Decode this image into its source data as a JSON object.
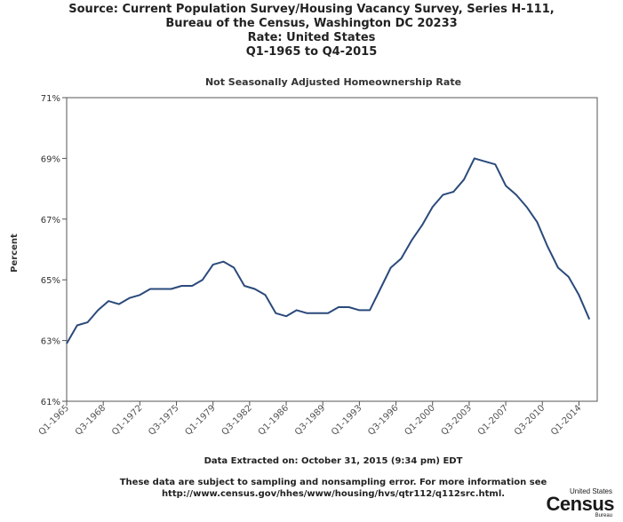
{
  "header": {
    "line1": "Source: Current Population Survey/Housing Vacancy Survey, Series H-111,",
    "line2": "Bureau of the Census, Washington DC 20233",
    "line3": "Rate: United States",
    "line4": "Q1-1965 to Q4-2015"
  },
  "footer": {
    "extracted": "Data Extracted on: October 31, 2015 (9:34 pm) EDT",
    "note1": "These data are subject to sampling and nonsampling error. For more information see",
    "note2": "http://www.census.gov/hhes/www/housing/hvs/qtr112/q112src.html."
  },
  "logo": {
    "line1": "United States",
    "line2": "Census",
    "line3": "Bureau"
  },
  "colors": {
    "line": "#2a4a7a",
    "axis": "#555555",
    "text": "#222222"
  },
  "chart_data": {
    "type": "line",
    "title": "Not Seasonally Adjusted Homeownership Rate",
    "ylabel": "Percent",
    "xlabel": "",
    "ylim": [
      61,
      71
    ],
    "yticks": [
      "61%",
      "63%",
      "65%",
      "67%",
      "69%",
      "71%"
    ],
    "xticks": [
      {
        "label": "Q1-1965",
        "x": 1965.0
      },
      {
        "label": "Q3-1968",
        "x": 1968.5
      },
      {
        "label": "Q1-1972",
        "x": 1972.0
      },
      {
        "label": "Q3-1975",
        "x": 1975.5
      },
      {
        "label": "Q1-1979",
        "x": 1979.0
      },
      {
        "label": "Q3-1982",
        "x": 1982.5
      },
      {
        "label": "Q1-1986",
        "x": 1986.0
      },
      {
        "label": "Q3-1989",
        "x": 1989.5
      },
      {
        "label": "Q1-1993",
        "x": 1993.0
      },
      {
        "label": "Q3-1996",
        "x": 1996.5
      },
      {
        "label": "Q1-2000",
        "x": 2000.0
      },
      {
        "label": "Q3-2003",
        "x": 2003.5
      },
      {
        "label": "Q1-2007",
        "x": 2007.0
      },
      {
        "label": "Q3-2010",
        "x": 2010.5
      },
      {
        "label": "Q1-2014",
        "x": 2014.0
      }
    ],
    "xlim": [
      1965.0,
      2015.75
    ],
    "grid": false,
    "legend": "none",
    "series": [
      {
        "values": [
          [
            1965.0,
            62.9
          ],
          [
            1966.0,
            63.5
          ],
          [
            1967.0,
            63.6
          ],
          [
            1968.0,
            64.0
          ],
          [
            1969.0,
            64.3
          ],
          [
            1970.0,
            64.2
          ],
          [
            1971.0,
            64.4
          ],
          [
            1972.0,
            64.5
          ],
          [
            1973.0,
            64.7
          ],
          [
            1974.0,
            64.7
          ],
          [
            1975.0,
            64.7
          ],
          [
            1976.0,
            64.8
          ],
          [
            1977.0,
            64.8
          ],
          [
            1978.0,
            65.0
          ],
          [
            1979.0,
            65.5
          ],
          [
            1980.0,
            65.6
          ],
          [
            1981.0,
            65.4
          ],
          [
            1982.0,
            64.8
          ],
          [
            1983.0,
            64.7
          ],
          [
            1984.0,
            64.5
          ],
          [
            1985.0,
            63.9
          ],
          [
            1986.0,
            63.8
          ],
          [
            1987.0,
            64.0
          ],
          [
            1988.0,
            63.9
          ],
          [
            1989.0,
            63.9
          ],
          [
            1990.0,
            63.9
          ],
          [
            1991.0,
            64.1
          ],
          [
            1992.0,
            64.1
          ],
          [
            1993.0,
            64.0
          ],
          [
            1994.0,
            64.0
          ],
          [
            1995.0,
            64.7
          ],
          [
            1996.0,
            65.4
          ],
          [
            1997.0,
            65.7
          ],
          [
            1998.0,
            66.3
          ],
          [
            1999.0,
            66.8
          ],
          [
            2000.0,
            67.4
          ],
          [
            2001.0,
            67.8
          ],
          [
            2002.0,
            67.9
          ],
          [
            2003.0,
            68.3
          ],
          [
            2004.0,
            69.0
          ],
          [
            2005.0,
            68.9
          ],
          [
            2006.0,
            68.8
          ],
          [
            2007.0,
            68.1
          ],
          [
            2008.0,
            67.8
          ],
          [
            2009.0,
            67.4
          ],
          [
            2010.0,
            66.9
          ],
          [
            2011.0,
            66.1
          ],
          [
            2012.0,
            65.4
          ],
          [
            2013.0,
            65.1
          ],
          [
            2014.0,
            64.5
          ],
          [
            2015.0,
            63.7
          ]
        ]
      }
    ]
  }
}
